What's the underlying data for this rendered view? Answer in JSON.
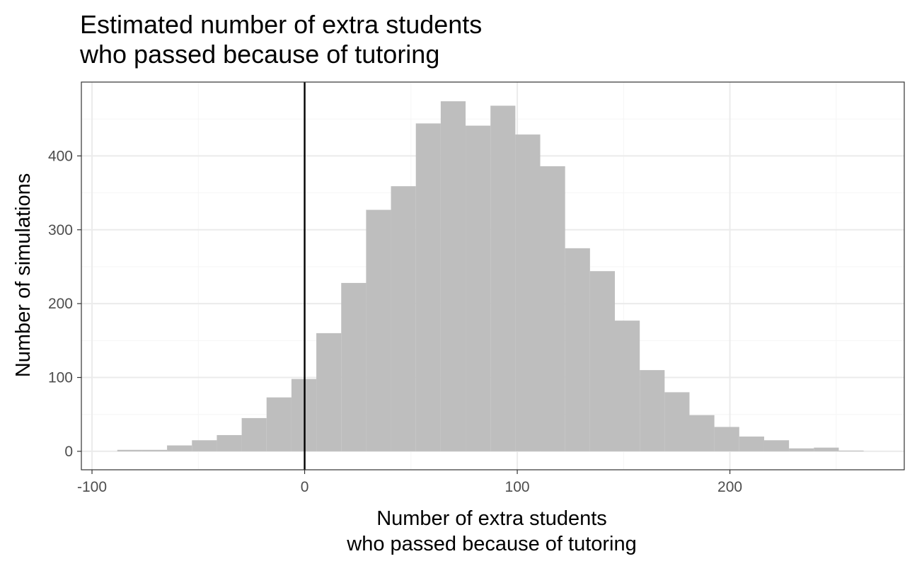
{
  "chart_data": {
    "type": "bar",
    "title": [
      "Estimated number of extra students",
      "who passed because of tutoring"
    ],
    "xlabel": [
      "Number of extra students",
      "who passed because of tutoring"
    ],
    "ylabel": "Number of simulations",
    "xlim": [
      -105,
      282
    ],
    "ylim": [
      -25,
      500
    ],
    "x_ticks": [
      -100,
      0,
      100,
      200
    ],
    "y_ticks": [
      0,
      100,
      200,
      300,
      400
    ],
    "grid": true,
    "bin_width": 11.7,
    "bins": [
      {
        "x_min": -88.1,
        "x_max": -76.4,
        "count": 2
      },
      {
        "x_min": -76.4,
        "x_max": -64.7,
        "count": 2
      },
      {
        "x_min": -64.7,
        "x_max": -53.0,
        "count": 8
      },
      {
        "x_min": -53.0,
        "x_max": -41.3,
        "count": 15
      },
      {
        "x_min": -41.3,
        "x_max": -29.6,
        "count": 22
      },
      {
        "x_min": -29.6,
        "x_max": -17.9,
        "count": 45
      },
      {
        "x_min": -17.9,
        "x_max": -6.2,
        "count": 73
      },
      {
        "x_min": -6.2,
        "x_max": 5.5,
        "count": 98
      },
      {
        "x_min": 5.5,
        "x_max": 17.2,
        "count": 160
      },
      {
        "x_min": 17.2,
        "x_max": 28.9,
        "count": 228
      },
      {
        "x_min": 28.9,
        "x_max": 40.6,
        "count": 327
      },
      {
        "x_min": 40.6,
        "x_max": 52.3,
        "count": 359
      },
      {
        "x_min": 52.3,
        "x_max": 64.0,
        "count": 444
      },
      {
        "x_min": 64.0,
        "x_max": 75.7,
        "count": 474
      },
      {
        "x_min": 75.7,
        "x_max": 87.4,
        "count": 441
      },
      {
        "x_min": 87.4,
        "x_max": 99.1,
        "count": 468
      },
      {
        "x_min": 99.1,
        "x_max": 110.8,
        "count": 429
      },
      {
        "x_min": 110.8,
        "x_max": 122.5,
        "count": 386
      },
      {
        "x_min": 122.5,
        "x_max": 134.2,
        "count": 275
      },
      {
        "x_min": 134.2,
        "x_max": 145.9,
        "count": 244
      },
      {
        "x_min": 145.9,
        "x_max": 157.6,
        "count": 177
      },
      {
        "x_min": 157.6,
        "x_max": 169.3,
        "count": 110
      },
      {
        "x_min": 169.3,
        "x_max": 181.0,
        "count": 80
      },
      {
        "x_min": 181.0,
        "x_max": 192.7,
        "count": 49
      },
      {
        "x_min": 192.7,
        "x_max": 204.4,
        "count": 33
      },
      {
        "x_min": 204.4,
        "x_max": 216.1,
        "count": 20
      },
      {
        "x_min": 216.1,
        "x_max": 227.8,
        "count": 15
      },
      {
        "x_min": 227.8,
        "x_max": 239.5,
        "count": 4
      },
      {
        "x_min": 239.5,
        "x_max": 251.2,
        "count": 5
      },
      {
        "x_min": 251.2,
        "x_max": 262.9,
        "count": 1
      }
    ],
    "vline_x": 0,
    "colors": {
      "bar": "#bebebe",
      "vline": "#000000",
      "grid_major": "#ebebeb",
      "grid_minor": "#f5f5f5",
      "panel_border": "#333333"
    }
  }
}
